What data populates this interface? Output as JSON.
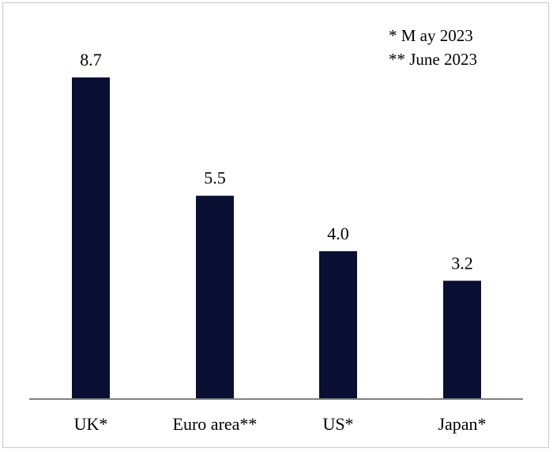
{
  "chart_data": {
    "type": "bar",
    "categories": [
      "UK*",
      "Euro area**",
      "US*",
      "Japan*"
    ],
    "values": [
      8.7,
      5.5,
      4.0,
      3.2
    ],
    "data_labels": [
      "8.7",
      "5.5",
      "4.0",
      "3.2"
    ],
    "annotations": [
      "* M ay 2023",
      "** June 2023"
    ],
    "bar_color": "#0a1033",
    "ylim": [
      0,
      8.7
    ],
    "grid": false,
    "legend": "none"
  }
}
